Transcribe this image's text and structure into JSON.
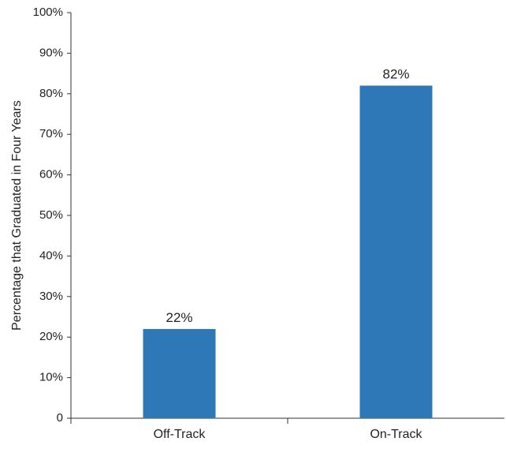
{
  "chart_data": {
    "type": "bar",
    "title": "",
    "xlabel": "",
    "ylabel": "Percentage that Graduated in Four Years",
    "categories": [
      "Off-Track",
      "On-Track"
    ],
    "values": [
      22,
      82
    ],
    "value_labels": [
      "22%",
      "82%"
    ],
    "ylim": [
      0,
      100
    ],
    "yticks": [
      0,
      10,
      20,
      30,
      40,
      50,
      60,
      70,
      80,
      90,
      100
    ],
    "ytick_labels": [
      "0",
      "10%",
      "20%",
      "30%",
      "40%",
      "50%",
      "60%",
      "70%",
      "80%",
      "90%",
      "100%"
    ],
    "grid": false,
    "legend": "none",
    "bar_color": "#2f78b7"
  }
}
